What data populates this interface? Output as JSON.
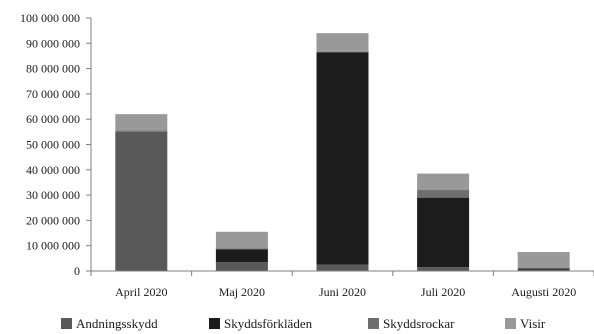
{
  "chart_data": {
    "type": "bar",
    "stacked": true,
    "categories": [
      "April 2020",
      "Maj 2020",
      "Juni 2020",
      "Juli 2020",
      "Augusti 2020"
    ],
    "series": [
      {
        "name": "Andningsskydd",
        "color": "#595959",
        "values": [
          55000000,
          3500000,
          2500000,
          1500000,
          500000
        ]
      },
      {
        "name": "Skyddsförkläden",
        "color": "#1c1c1c",
        "values": [
          0,
          5000000,
          84000000,
          27500000,
          500000
        ]
      },
      {
        "name": "Skyddsrockar",
        "color": "#6e6e6e",
        "values": [
          500000,
          500000,
          0,
          3000000,
          0
        ]
      },
      {
        "name": "Visir",
        "color": "#999999",
        "values": [
          6500000,
          6500000,
          7500000,
          6500000,
          6500000
        ]
      }
    ],
    "ylim": [
      0,
      100000000
    ],
    "yticks": [
      0,
      10000000,
      20000000,
      30000000,
      40000000,
      50000000,
      60000000,
      70000000,
      80000000,
      90000000,
      100000000
    ],
    "ytick_labels": [
      "0",
      "10 000 000",
      "20 000 000",
      "30 000 000",
      "40 000 000",
      "50 000 000",
      "60 000 000",
      "70 000 000",
      "80 000 000",
      "90 000 000",
      "100 000 000"
    ],
    "grid": false,
    "legend_position": "bottom",
    "title": "",
    "xlabel": "",
    "ylabel": ""
  }
}
